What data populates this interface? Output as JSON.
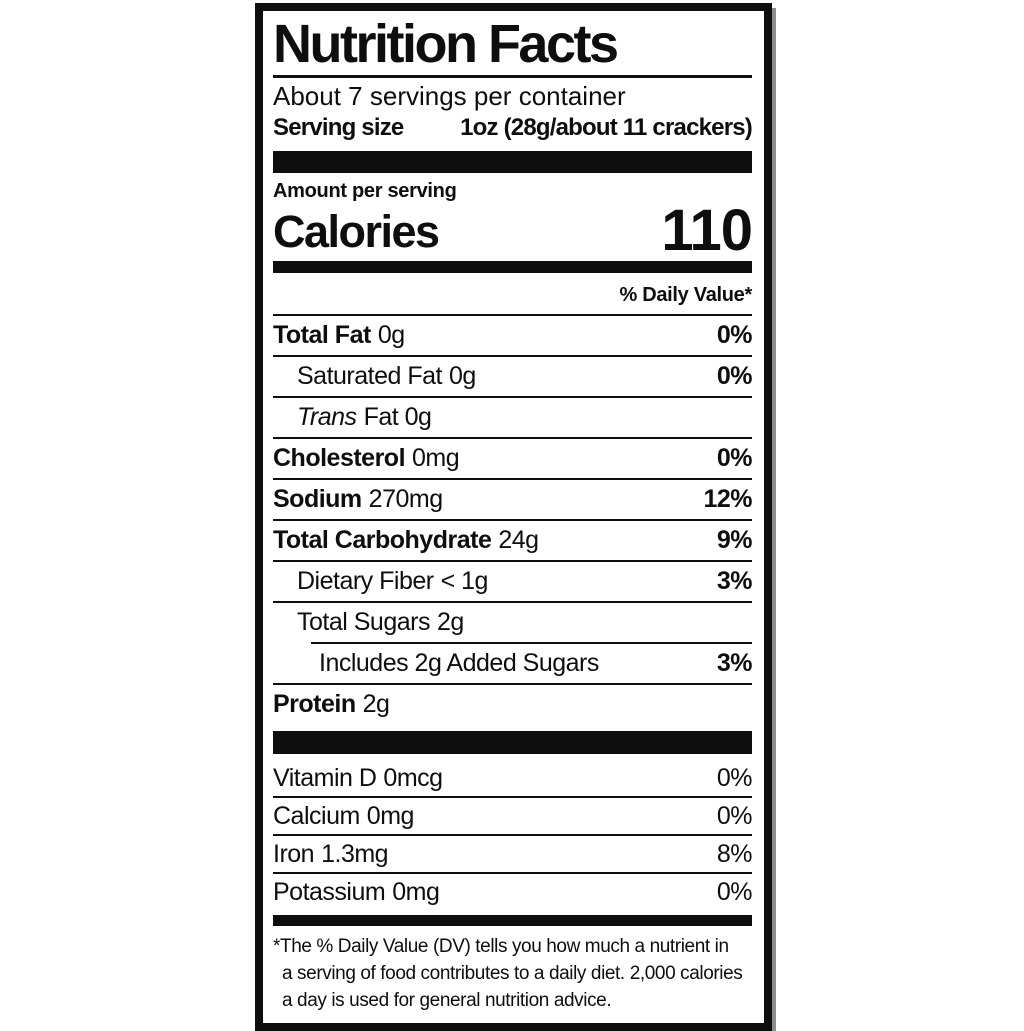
{
  "label": {
    "title": "Nutrition Facts",
    "servings_per_container": "About 7 servings per container",
    "serving_size_label": "Serving size",
    "serving_size_value": "1oz (28g/about 11 crackers)",
    "amount_per_serving": "Amount per serving",
    "calories_label": "Calories",
    "calories_value": "110",
    "daily_value_header": "% Daily Value*",
    "nutrients": [
      {
        "name": "Total Fat",
        "amount": "0g",
        "dv": "0%"
      },
      {
        "name": "Saturated Fat",
        "amount": "0g",
        "dv": "0%"
      },
      {
        "name": "Trans",
        "amount": "Fat 0g",
        "dv": ""
      },
      {
        "name": "Cholesterol",
        "amount": "0mg",
        "dv": "0%"
      },
      {
        "name": "Sodium",
        "amount": "270mg",
        "dv": "12%"
      },
      {
        "name": "Total Carbohydrate",
        "amount": "24g",
        "dv": "9%"
      },
      {
        "name": "Dietary Fiber",
        "amount": "< 1g",
        "dv": "3%"
      },
      {
        "name": "Total Sugars",
        "amount": "2g",
        "dv": ""
      },
      {
        "name": "Includes 2g Added Sugars",
        "amount": "",
        "dv": "3%"
      },
      {
        "name": "Protein",
        "amount": "2g",
        "dv": ""
      }
    ],
    "micronutrients": [
      {
        "name": "Vitamin D",
        "amount": "0mcg",
        "dv": "0%"
      },
      {
        "name": "Calcium",
        "amount": "0mg",
        "dv": "0%"
      },
      {
        "name": "Iron",
        "amount": "1.3mg",
        "dv": "8%"
      },
      {
        "name": "Potassium",
        "amount": "0mg",
        "dv": "0%"
      }
    ],
    "footnote_lines": [
      "*The % Daily Value (DV) tells you how much a nutrient in",
      "a serving of food contributes to a daily diet. 2,000 calories",
      "a day is used for general nutrition advice."
    ],
    "colors": {
      "ink": "#0e0e0e",
      "background": "#ffffff"
    }
  }
}
